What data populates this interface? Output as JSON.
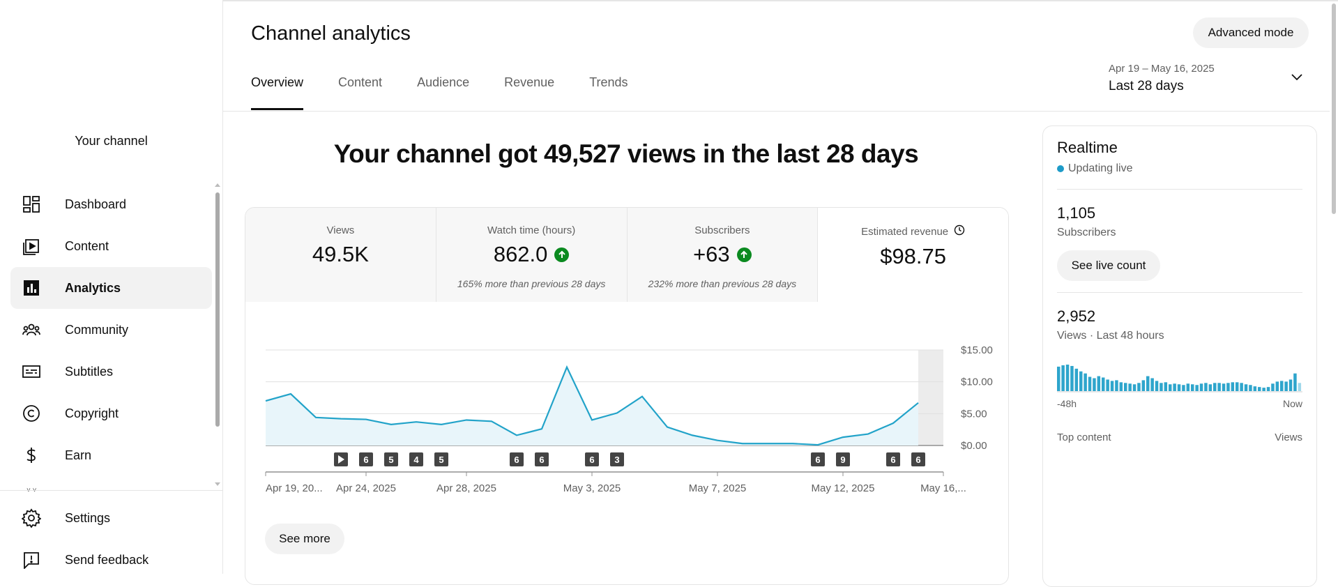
{
  "sidebar": {
    "channel_label": "Your channel",
    "items": [
      {
        "label": "Dashboard",
        "icon": "dashboard-icon",
        "active": false
      },
      {
        "label": "Content",
        "icon": "content-icon",
        "active": false
      },
      {
        "label": "Analytics",
        "icon": "analytics-icon",
        "active": true
      },
      {
        "label": "Community",
        "icon": "community-icon",
        "active": false
      },
      {
        "label": "Subtitles",
        "icon": "subtitles-icon",
        "active": false
      },
      {
        "label": "Copyright",
        "icon": "copyright-icon",
        "active": false
      },
      {
        "label": "Earn",
        "icon": "earn-icon",
        "active": false
      }
    ],
    "bottom_items": [
      {
        "label": "Settings",
        "icon": "settings-icon"
      },
      {
        "label": "Send feedback",
        "icon": "feedback-icon"
      }
    ]
  },
  "header": {
    "title": "Channel analytics",
    "advanced_mode_label": "Advanced mode",
    "tabs": [
      {
        "label": "Overview",
        "active": true
      },
      {
        "label": "Content",
        "active": false
      },
      {
        "label": "Audience",
        "active": false
      },
      {
        "label": "Revenue",
        "active": false
      },
      {
        "label": "Trends",
        "active": false
      }
    ],
    "date_range": {
      "dates": "Apr 19 – May 16, 2025",
      "label": "Last 28 days"
    }
  },
  "headline": "Your channel got 49,527 views in the last 28 days",
  "metrics": [
    {
      "label": "Views",
      "value": "49.5K",
      "note": "",
      "trend_up": false,
      "selected": false
    },
    {
      "label": "Watch time (hours)",
      "value": "862.0",
      "note": "165% more than previous 28 days",
      "trend_up": true,
      "selected": false
    },
    {
      "label": "Subscribers",
      "value": "+63",
      "note": "232% more than previous 28 days",
      "trend_up": true,
      "selected": false
    },
    {
      "label": "Estimated revenue",
      "value": "$98.75",
      "note": "",
      "trend_up": false,
      "selected": true
    }
  ],
  "chart_data": {
    "type": "area",
    "ylim": [
      0,
      15
    ],
    "yticks": [
      "$15.00",
      "$10.00",
      "$5.00",
      "$0.00"
    ],
    "ytick_values": [
      15,
      10,
      5,
      0
    ],
    "x_tick_labels": [
      "Apr 19, 20...",
      "Apr 24, 2025",
      "Apr 28, 2025",
      "May 3, 2025",
      "May 7, 2025",
      "May 12, 2025",
      "May 16,..."
    ],
    "x_tick_days": [
      0,
      4,
      8,
      13,
      18,
      23,
      27
    ],
    "values": [
      7.0,
      8.1,
      4.4,
      4.2,
      4.1,
      3.3,
      3.7,
      3.3,
      4.0,
      3.8,
      1.6,
      2.6,
      12.3,
      4.0,
      5.1,
      7.7,
      2.9,
      1.6,
      0.8,
      0.3,
      0.3,
      0.3,
      0.1,
      1.3,
      1.8,
      3.5,
      6.7
    ],
    "line_color": "#22a3c9",
    "fill_color": "#e8f5fa",
    "markers": [
      {
        "day": 3,
        "label": "",
        "type": "play"
      },
      {
        "day": 4,
        "label": "6"
      },
      {
        "day": 5,
        "label": "5"
      },
      {
        "day": 6,
        "label": "4"
      },
      {
        "day": 7,
        "label": "5"
      },
      {
        "day": 10,
        "label": "6"
      },
      {
        "day": 11,
        "label": "6"
      },
      {
        "day": 13,
        "label": "6"
      },
      {
        "day": 14,
        "label": "3"
      },
      {
        "day": 22,
        "label": "6"
      },
      {
        "day": 23,
        "label": "9"
      },
      {
        "day": 25,
        "label": "6"
      },
      {
        "day": 26,
        "label": "6"
      }
    ],
    "grid": true
  },
  "see_more_label": "See more",
  "realtime": {
    "title": "Realtime",
    "status": "Updating live",
    "subscribers_value": "1,105",
    "subscribers_label": "Subscribers",
    "live_count_label": "See live count",
    "views_value": "2,952",
    "views_label": "Views · Last 48 hours",
    "axis_start": "-48h",
    "axis_end": "Now",
    "top_content_label": "Top content",
    "views_col_label": "Views",
    "bar_values": [
      36,
      38,
      39,
      37,
      33,
      29,
      26,
      21,
      19,
      22,
      20,
      17,
      15,
      16,
      13,
      12,
      11,
      10,
      12,
      16,
      22,
      19,
      15,
      12,
      13,
      10,
      11,
      10,
      9,
      11,
      10,
      9,
      11,
      12,
      10,
      12,
      12,
      11,
      12,
      13,
      13,
      12,
      10,
      9,
      7,
      6,
      5,
      6,
      11,
      14,
      15,
      14,
      17,
      26,
      12
    ]
  }
}
